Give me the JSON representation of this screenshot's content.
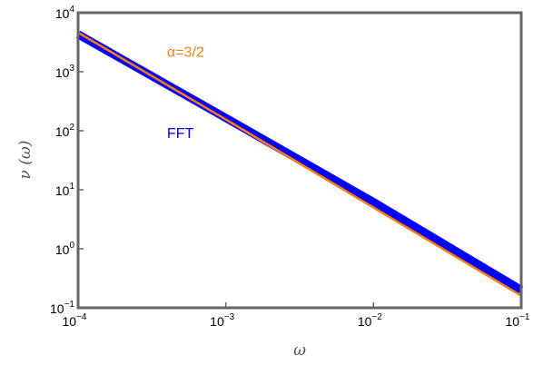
{
  "chart_data": {
    "type": "line",
    "xlabel": "ω",
    "ylabel": "ν (ω)",
    "xscale": "log",
    "yscale": "log",
    "xlim": [
      0.0001,
      0.1
    ],
    "ylim": [
      0.1,
      10000
    ],
    "x_ticks": [
      {
        "value": 0.0001,
        "base": "10",
        "exp": "−4"
      },
      {
        "value": 0.001,
        "base": "10",
        "exp": "−3"
      },
      {
        "value": 0.01,
        "base": "10",
        "exp": "−2"
      },
      {
        "value": 0.1,
        "base": "10",
        "exp": "−1"
      }
    ],
    "y_ticks": [
      {
        "value": 0.1,
        "base": "10",
        "exp": "−1"
      },
      {
        "value": 1,
        "base": "10",
        "exp": "0"
      },
      {
        "value": 10,
        "base": "10",
        "exp": "1"
      },
      {
        "value": 100,
        "base": "10",
        "exp": "2"
      },
      {
        "value": 1000,
        "base": "10",
        "exp": "3"
      },
      {
        "value": 10000,
        "base": "10",
        "exp": "4"
      }
    ],
    "grid": false,
    "series": [
      {
        "name": "FFT",
        "color": "#0000ff",
        "x": [
          0.0001,
          0.001,
          0.01,
          0.1
        ],
        "y": [
          4300,
          165,
          6.2,
          0.2
        ]
      },
      {
        "name": "α=3/2",
        "color": "#ff7f0e",
        "x": [
          0.0001,
          0.001,
          0.01,
          0.1
        ],
        "y": [
          4600,
          155,
          5.0,
          0.16
        ]
      }
    ],
    "annotations": [
      {
        "text": "α=3/2",
        "color": "#ff7f0e",
        "x": 0.0004,
        "y": 1800
      },
      {
        "text": "FFT",
        "color": "#0000ff",
        "x": 0.0004,
        "y": 75
      }
    ]
  }
}
